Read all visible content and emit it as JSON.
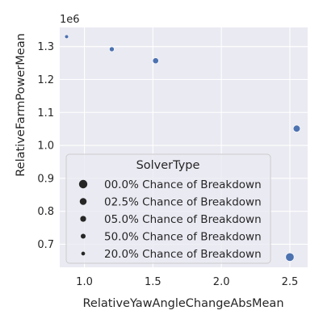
{
  "chart_data": {
    "type": "scatter",
    "xlabel": "RelativeYawAngleChangeAbsMean",
    "ylabel": "RelativeFarmPowerMean",
    "y_offset_label": "1e6",
    "xlim": [
      0.82,
      2.63
    ],
    "ylim": [
      630000,
      1358000
    ],
    "xticks": [
      1.0,
      1.5,
      2.0,
      2.5
    ],
    "xtick_labels": [
      "1.0",
      "1.5",
      "2.0",
      "2.5"
    ],
    "yticks": [
      700000,
      800000,
      900000,
      1000000,
      1100000,
      1200000,
      1300000
    ],
    "ytick_labels": [
      "0.7",
      "0.8",
      "0.9",
      "1.0",
      "1.1",
      "1.2",
      "1.3"
    ],
    "grid": true,
    "point_color": "#4c72b0",
    "background_color": "#eaeaf2",
    "legend": {
      "title": "SolverType",
      "placement": "lower-left",
      "entries": [
        {
          "label": "00.0% Chance of Breakdown",
          "size_rank": 1.0
        },
        {
          "label": "02.5% Chance of Breakdown",
          "size_rank": 0.82
        },
        {
          "label": "05.0% Chance of Breakdown",
          "size_rank": 0.7
        },
        {
          "label": "50.0% Chance of Breakdown",
          "size_rank": 0.58
        },
        {
          "label": "20.0% Chance of Breakdown",
          "size_rank": 0.45
        }
      ]
    },
    "points": [
      {
        "x": 0.87,
        "y": 1330000,
        "category": "20.0% Chance of Breakdown"
      },
      {
        "x": 1.2,
        "y": 1292000,
        "category": "50.0% Chance of Breakdown"
      },
      {
        "x": 1.52,
        "y": 1257000,
        "category": "05.0% Chance of Breakdown"
      },
      {
        "x": 2.55,
        "y": 1051000,
        "category": "02.5% Chance of Breakdown"
      },
      {
        "x": 2.5,
        "y": 661000,
        "category": "00.0% Chance of Breakdown"
      }
    ]
  }
}
